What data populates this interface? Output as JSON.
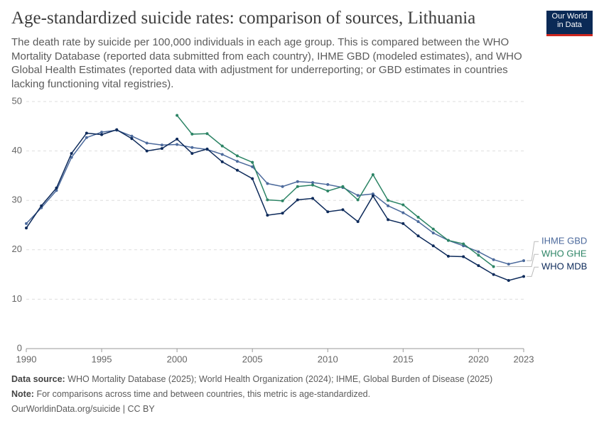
{
  "chart_data": {
    "type": "line",
    "title": "Age-standardized suicide rates: comparison of sources, Lithuania",
    "subtitle": "The death rate by suicide per 100,000 individuals in each age group. This is compared between the WHO Mortality Database (reported data submitted from each country), IHME GBD (modeled estimates), and WHO Global Health Estimates (reported data with adjustment for underreporting; or GBD estimates in countries lacking functioning vital registries).",
    "x": [
      1990,
      1991,
      1992,
      1993,
      1994,
      1995,
      1996,
      1997,
      1998,
      1999,
      2000,
      2001,
      2002,
      2003,
      2004,
      2005,
      2006,
      2007,
      2008,
      2009,
      2010,
      2011,
      2012,
      2013,
      2014,
      2015,
      2016,
      2017,
      2018,
      2019,
      2020,
      2021,
      2022,
      2023
    ],
    "series": [
      {
        "name": "IHME GBD",
        "color": "#4c6a9c",
        "values": [
          25.3,
          28.5,
          32.0,
          38.7,
          42.7,
          43.8,
          44.2,
          43.0,
          41.6,
          41.2,
          41.3,
          40.7,
          40.3,
          39.3,
          37.9,
          36.8,
          33.4,
          32.8,
          33.8,
          33.6,
          33.2,
          32.6,
          31.0,
          31.3,
          28.9,
          27.5,
          25.7,
          23.4,
          21.9,
          20.8,
          19.6,
          18.0,
          17.1,
          17.8
        ]
      },
      {
        "name": "WHO GHE",
        "color": "#2c8465",
        "values": [
          null,
          null,
          null,
          null,
          null,
          null,
          null,
          null,
          null,
          null,
          47.2,
          43.4,
          43.5,
          41.0,
          39.0,
          37.7,
          30.1,
          29.9,
          32.8,
          33.1,
          31.9,
          32.8,
          30.1,
          35.2,
          30.0,
          29.1,
          26.6,
          24.2,
          21.9,
          21.2,
          18.9,
          16.6,
          null,
          null
        ]
      },
      {
        "name": "WHO MDB",
        "color": "#0d2a5a",
        "values": [
          24.4,
          28.9,
          32.5,
          39.5,
          43.6,
          43.3,
          44.3,
          42.5,
          40.0,
          40.5,
          42.4,
          39.5,
          40.4,
          37.8,
          36.1,
          34.4,
          27.0,
          27.4,
          30.1,
          30.4,
          27.7,
          28.1,
          25.7,
          30.9,
          26.1,
          25.3,
          22.8,
          20.8,
          18.7,
          18.6,
          16.8,
          15.0,
          13.8,
          14.6
        ]
      }
    ],
    "xlim": [
      1990,
      2023
    ],
    "xticks": [
      1990,
      1995,
      2000,
      2005,
      2010,
      2015,
      2020,
      2023
    ],
    "ylim": [
      0,
      50
    ],
    "yticks": [
      0,
      10,
      20,
      30,
      40,
      50
    ],
    "grid": true,
    "source": {
      "label": "Data source:",
      "text": "WHO Mortality Database (2025); World Health Organization (2024); IHME, Global Burden of Disease (2025)"
    },
    "note": {
      "label": "Note:",
      "text": "For comparisons across time and between countries, this metric is age-standardized."
    },
    "footer": "OurWorldinData.org/suicide | CC BY"
  },
  "logo": [
    "Our World",
    "in Data"
  ]
}
